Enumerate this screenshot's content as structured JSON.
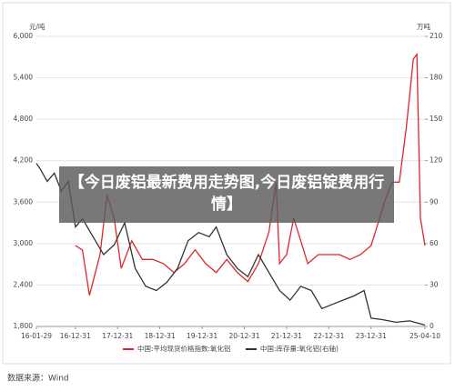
{
  "chart_data": {
    "type": "line",
    "y_unit": "元/吨",
    "y2_unit": "万吨",
    "overlay_title": "【今日废铝最新费用走势图,今日废铝锭费用行情】",
    "source": "数据来源：Wind",
    "grid": true,
    "xlim": [
      "16-01-29",
      "25-04-10"
    ],
    "xticks": [
      "16-01-29",
      "16-12-31",
      "17-12-31",
      "18-12-31",
      "19-12-31",
      "20-12-31",
      "21-12-31",
      "22-12-31",
      "23-12-31",
      "25-04-10"
    ],
    "ylim": [
      1800,
      6000
    ],
    "yticks": [
      {
        "value": 1800,
        "label": "1,800"
      },
      {
        "value": 2400,
        "label": "2,400"
      },
      {
        "value": 3000,
        "label": "3,000"
      },
      {
        "value": 3600,
        "label": "3,600"
      },
      {
        "value": 4200,
        "label": "4,200"
      },
      {
        "value": 4800,
        "label": "4,800"
      },
      {
        "value": 5400,
        "label": "5,400"
      },
      {
        "value": 6000,
        "label": "6,000"
      }
    ],
    "y2lim": [
      0,
      210
    ],
    "y2ticks": [
      0,
      30,
      60,
      90,
      120,
      150,
      180,
      210
    ],
    "series": [
      {
        "name": "中国:平均现货价格指数:氧化铝",
        "color": "#e0262c",
        "x": [
          "17-01",
          "17-03",
          "17-05",
          "17-08",
          "17-10",
          "17-12",
          "18-02",
          "18-05",
          "18-08",
          "18-11",
          "19-02",
          "19-05",
          "19-08",
          "19-11",
          "20-02",
          "20-05",
          "20-08",
          "20-11",
          "21-02",
          "21-05",
          "21-08",
          "21-10",
          "21-11",
          "22-01",
          "22-03",
          "22-05",
          "22-07",
          "22-10",
          "23-01",
          "23-04",
          "23-07",
          "23-10",
          "24-01",
          "24-03",
          "24-05",
          "24-07",
          "24-09",
          "24-11",
          "25-01",
          "25-02",
          "25-03",
          "25-04-10"
        ],
        "values": [
          2970,
          2906,
          2250,
          2840,
          3700,
          3370,
          2640,
          3040,
          2770,
          2770,
          2710,
          2580,
          2710,
          2910,
          2710,
          2580,
          2770,
          2580,
          2450,
          2710,
          3170,
          3890,
          2710,
          2840,
          3370,
          3040,
          2710,
          2840,
          2840,
          2840,
          2770,
          2840,
          2970,
          3300,
          3630,
          3890,
          3890,
          4680,
          5670,
          5740,
          3370,
          2970
        ]
      },
      {
        "name": "中国:库存量:氧化铝(右轴)",
        "color": "#333333",
        "axis": "y2",
        "x": [
          "16-01-29",
          "16-03",
          "16-05",
          "16-07",
          "16-09",
          "16-11",
          "17-01",
          "17-03",
          "17-06",
          "17-09",
          "17-12",
          "18-03",
          "18-06",
          "18-09",
          "18-12",
          "19-03",
          "19-06",
          "19-09",
          "19-12",
          "20-03",
          "20-05",
          "20-08",
          "20-11",
          "21-02",
          "21-05",
          "21-08",
          "21-11",
          "22-02",
          "22-05",
          "22-08",
          "22-11",
          "23-02",
          "23-05",
          "23-08",
          "23-11",
          "24-01",
          "24-04",
          "24-08",
          "24-12",
          "25-04-10"
        ],
        "values": [
          118,
          114,
          105,
          111,
          98,
          105,
          72,
          78,
          65,
          52,
          59,
          75,
          42,
          29,
          26,
          32,
          42,
          62,
          68,
          65,
          72,
          52,
          42,
          36,
          52,
          39,
          26,
          19,
          29,
          26,
          13,
          16,
          19,
          22,
          26,
          6,
          5,
          3,
          4,
          1
        ]
      }
    ]
  }
}
